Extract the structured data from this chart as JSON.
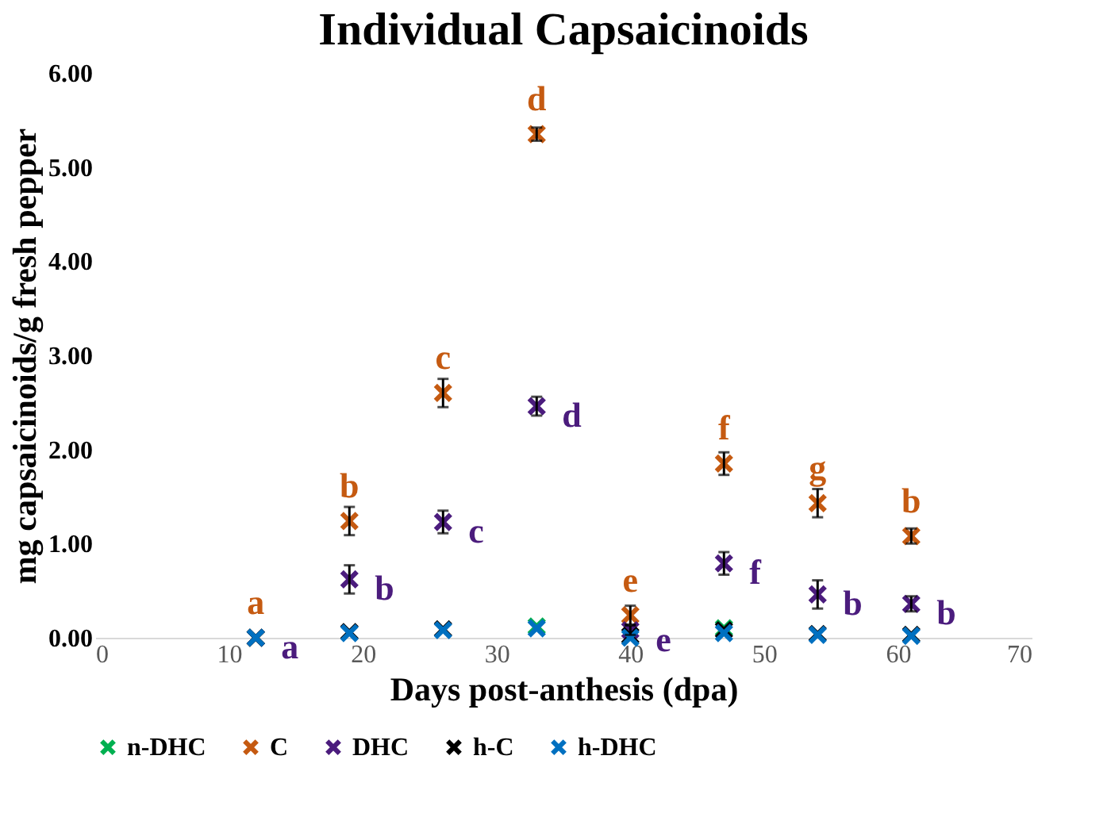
{
  "chart_data": {
    "type": "scatter",
    "title": "Individual Capsaicinoids",
    "xlabel": "Days post-anthesis (dpa)",
    "ylabel": "mg capsaicinoids/g fresh pepper",
    "x": [
      12,
      19,
      26,
      33,
      40,
      47,
      54,
      61
    ],
    "xlim": [
      0,
      70
    ],
    "xticks": [
      0,
      10,
      20,
      30,
      40,
      50,
      60,
      70
    ],
    "ylim": [
      0,
      6
    ],
    "yticks": [
      {
        "value": 0,
        "label": "0.00"
      },
      {
        "value": 1,
        "label": "1.00"
      },
      {
        "value": 2,
        "label": "2.00"
      },
      {
        "value": 3,
        "label": "3.00"
      },
      {
        "value": 4,
        "label": "4.00"
      },
      {
        "value": 5,
        "label": "5.00"
      },
      {
        "value": 6,
        "label": "6.00"
      }
    ],
    "marker": "cross",
    "grid": false,
    "legend": "bottom",
    "series": [
      {
        "name": "n-DHC",
        "color": "#00b050",
        "values": [
          0.0,
          null,
          null,
          0.12,
          null,
          0.1,
          null,
          null
        ]
      },
      {
        "name": "C",
        "color": "#c55a11",
        "values": [
          0.0,
          1.24,
          2.6,
          5.35,
          0.24,
          1.85,
          1.43,
          1.08
        ],
        "errors": [
          null,
          0.15,
          0.15,
          0.07,
          0.1,
          0.12,
          0.15,
          0.08
        ],
        "value_labels": [
          "a",
          "b",
          "c",
          "d",
          "e",
          "f",
          "g",
          "b"
        ]
      },
      {
        "name": "DHC",
        "color": "#4b1c7d",
        "values": [
          0.0,
          0.62,
          1.23,
          2.46,
          0.08,
          0.79,
          0.46,
          0.36
        ],
        "errors": [
          null,
          0.15,
          0.12,
          0.1,
          0.05,
          0.12,
          0.15,
          0.08
        ],
        "value_labels": [
          "a",
          "b",
          "c",
          "d",
          "e",
          "f",
          "b",
          "b"
        ]
      },
      {
        "name": "h-C",
        "color": "#000000",
        "values": [
          0.0,
          0.06,
          0.09,
          null,
          0.02,
          0.08,
          0.04,
          0.03
        ]
      },
      {
        "name": "h-DHC",
        "color": "#0070c0",
        "values": [
          0.0,
          0.05,
          0.08,
          0.1,
          0.0,
          0.05,
          0.03,
          0.02
        ]
      }
    ]
  }
}
